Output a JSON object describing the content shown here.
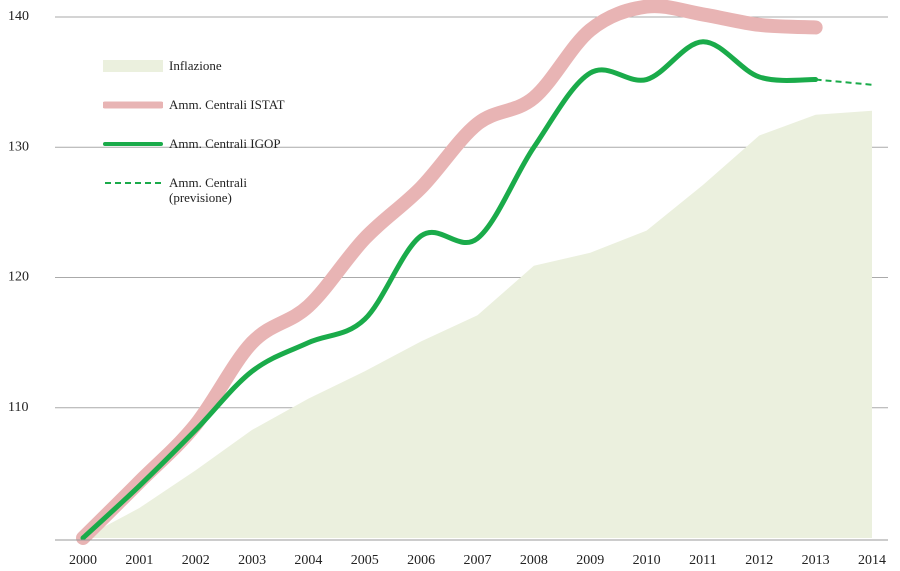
{
  "chart_data": {
    "type": "line",
    "categories": [
      "2000",
      "2001",
      "2002",
      "2003",
      "2004",
      "2005",
      "2006",
      "2007",
      "2008",
      "2009",
      "2010",
      "2011",
      "2012",
      "2013",
      "2014"
    ],
    "series": [
      {
        "name": "Inflazione",
        "type": "area",
        "color": "#ebf0de",
        "values": [
          100,
          102.3,
          105.2,
          108.3,
          110.7,
          112.8,
          115.1,
          117.1,
          120.9,
          121.9,
          123.6,
          127.1,
          130.9,
          132.5,
          132.8
        ]
      },
      {
        "name": "Amm. Centrali ISTAT",
        "type": "line",
        "color": "#e8b4b4",
        "values": [
          100,
          104.3,
          108.7,
          115.0,
          117.8,
          123.0,
          126.9,
          131.8,
          133.8,
          139.0,
          140.8,
          140.2,
          139.4,
          139.2,
          null
        ]
      },
      {
        "name": "Amm. Centrali IGOP",
        "type": "line",
        "color": "#1aab4a",
        "values": [
          100,
          104.0,
          108.3,
          112.8,
          115.0,
          116.8,
          123.2,
          123.0,
          130.0,
          135.7,
          135.2,
          138.1,
          135.4,
          135.2,
          null
        ]
      },
      {
        "name": "Amm. Centrali (previsione)",
        "type": "line",
        "style": "dashed",
        "color": "#1aab4a",
        "values": [
          null,
          null,
          null,
          null,
          null,
          null,
          null,
          null,
          null,
          null,
          null,
          null,
          null,
          135.2,
          134.8
        ]
      }
    ],
    "ylim": [
      100,
      141
    ],
    "yticks": [
      110,
      120,
      130,
      140
    ],
    "grid": true,
    "legend": "upper left"
  }
}
